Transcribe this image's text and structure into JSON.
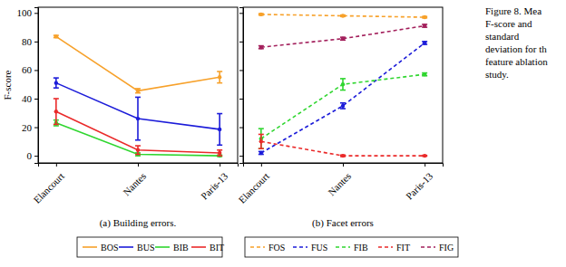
{
  "chart_data": [
    {
      "type": "line",
      "subtitle": "(a) Building errors.",
      "y_label": "F-score",
      "categories": [
        "Elancourt",
        "Nantes",
        "Paris-13"
      ],
      "ylim": [
        -5,
        104
      ],
      "yticks": [
        0,
        20,
        40,
        60,
        80,
        100
      ],
      "grid": false,
      "series": [
        {
          "name": "BOS",
          "color": "#f7a12a",
          "line_style": "solid",
          "marker": "circle",
          "values": [
            83.5,
            45.5,
            55
          ],
          "errors": [
            0.8,
            1.5,
            4
          ]
        },
        {
          "name": "BUS",
          "color": "#1c1cd9",
          "line_style": "solid",
          "marker": "circle",
          "values": [
            51,
            26,
            18.5
          ],
          "errors": [
            3.5,
            15,
            11
          ]
        },
        {
          "name": "BIB",
          "color": "#2fd62f",
          "line_style": "solid",
          "marker": "circle",
          "values": [
            23,
            1,
            0
          ],
          "errors": [
            2,
            1,
            0.5
          ]
        },
        {
          "name": "BIT",
          "color": "#ea2a2a",
          "line_style": "solid",
          "marker": "circle",
          "values": [
            31,
            4,
            2
          ],
          "errors": [
            9,
            3,
            2
          ]
        }
      ]
    },
    {
      "type": "line",
      "subtitle": "(b) Facet errors",
      "categories": [
        "Elancourt",
        "Nantes",
        "Paris-13"
      ],
      "ylim": [
        -5,
        104
      ],
      "yticks": [
        0,
        20,
        40,
        60,
        80,
        100
      ],
      "grid": false,
      "tick_labels": "x",
      "series": [
        {
          "name": "FOS",
          "color": "#f7a12a",
          "line_style": "dashed",
          "marker": "circle",
          "values": [
            99,
            98,
            97
          ],
          "errors": [
            0.5,
            0.5,
            0.5
          ]
        },
        {
          "name": "FUS",
          "color": "#1c1cd9",
          "line_style": "dashed",
          "marker": "circle",
          "values": [
            2,
            35,
            79
          ],
          "errors": [
            1,
            2,
            1
          ]
        },
        {
          "name": "FIB",
          "color": "#2fd62f",
          "line_style": "dashed",
          "marker": "circle",
          "values": [
            12,
            50,
            57
          ],
          "errors": [
            7,
            4,
            1
          ]
        },
        {
          "name": "FIT",
          "color": "#ea2a2a",
          "line_style": "dashed",
          "marker": "circle",
          "values": [
            10,
            0,
            0
          ],
          "errors": [
            5,
            0.5,
            0.3
          ]
        },
        {
          "name": "FIG",
          "color": "#a3205c",
          "line_style": "dashed",
          "marker": "circle",
          "values": [
            76,
            82,
            91
          ],
          "errors": [
            1,
            1,
            1
          ]
        }
      ]
    }
  ],
  "caption": [
    "Figure 8. Mea",
    "F-score and",
    "standard",
    "deviation for th",
    "feature ablation",
    "study."
  ]
}
